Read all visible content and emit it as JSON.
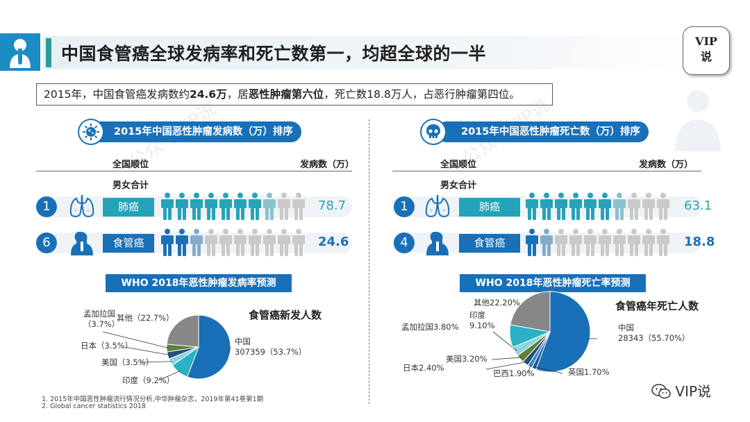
{
  "header": {
    "title": "中国食管癌全球发病率和死亡数第一，均超全球的一半",
    "logo_icon": "person-throat-icon",
    "vip_line1": "VIP",
    "vip_line2": "说"
  },
  "summary": {
    "p1": "2015年，中国食管癌发病数约",
    "b1": "24.6万",
    "p2": "，居",
    "b2": "恶性肿瘤第六位",
    "p3": "，死亡数18.8万人，占恶行肿瘤第四位。"
  },
  "left_panel": {
    "title": "2015年中国恶性肿瘤发病数（万）排序",
    "icon": "virus-icon",
    "col_rank": "全国顺位",
    "col_value": "发病数（万）",
    "subhead": "男女合计",
    "rows": [
      {
        "rank": "1",
        "organ_icon": "lungs-icon",
        "label": "肺癌",
        "value": "78.7",
        "filled_fraction": 0.787,
        "badge_color": "#25a3b8",
        "fig_color": "#25a3b8"
      },
      {
        "rank": "6",
        "organ_icon": "throat-icon",
        "label": "食管癌",
        "value": "24.6",
        "filled_fraction": 0.246,
        "badge_color": "#1a70b8",
        "fig_color": "#1a70b8"
      }
    ],
    "who_title": "WHO 2018年恶性肿瘤发病率预测",
    "pie_title": "食管癌新发人数"
  },
  "right_panel": {
    "title": "2015年中国恶性肿瘤死亡数（万）排序",
    "icon": "skull-icon",
    "col_rank": "全国顺位",
    "col_value": "发病数（万）",
    "subhead": "男女合计",
    "rows": [
      {
        "rank": "1",
        "organ_icon": "lungs-icon",
        "label": "肺癌",
        "value": "63.1",
        "filled_fraction": 0.631,
        "badge_color": "#25a3b8",
        "fig_color": "#25a3b8"
      },
      {
        "rank": "4",
        "organ_icon": "throat-icon",
        "label": "食管癌",
        "value": "18.8",
        "filled_fraction": 0.188,
        "badge_color": "#1a70b8",
        "fig_color": "#1a70b8"
      }
    ],
    "who_title": "WHO 2018年恶性肿瘤死亡率预测",
    "pie_title": "食管癌年死亡人数"
  },
  "chart_data": [
    {
      "type": "pie",
      "title": "食管癌新发人数",
      "slices": [
        {
          "name": "中国",
          "value": 53.7,
          "label": "中国\n307359（53.7%）",
          "color": "#1a70b8"
        },
        {
          "name": "印度",
          "value": 9.2,
          "label": "印度（9.2%）",
          "color": "#2bb0c4"
        },
        {
          "name": "美国",
          "value": 3.5,
          "label": "美国（3.5%）",
          "color": "#8fd3dd"
        },
        {
          "name": "日本",
          "value": 3.5,
          "label": "日本（3.5%）",
          "color": "#2c4f7c"
        },
        {
          "name": "孟加拉国",
          "value": 3.7,
          "label": "孟加拉国\n（3.7%）",
          "color": "#5d7f3a"
        },
        {
          "name": "其他",
          "value": 22.7,
          "label": "其他（22.7%）",
          "color": "#878787"
        }
      ]
    },
    {
      "type": "pie",
      "title": "食管癌年死亡人数",
      "slices": [
        {
          "name": "中国",
          "value": 55.7,
          "label": "中国\n28343（55.70%）",
          "color": "#1a70b8"
        },
        {
          "name": "英国",
          "value": 1.7,
          "label": "英国1.70%",
          "color": "#23539a"
        },
        {
          "name": "巴西",
          "value": 1.9,
          "label": "巴西1.90%",
          "color": "#3a8fc8"
        },
        {
          "name": "日本",
          "value": 2.4,
          "label": "日本2.40%",
          "color": "#2c4f7c"
        },
        {
          "name": "美国",
          "value": 3.2,
          "label": "美国3.20%",
          "color": "#5d7f3a"
        },
        {
          "name": "孟加拉国",
          "value": 3.8,
          "label": "孟加拉国3.80%",
          "color": "#8fd3dd"
        },
        {
          "name": "印度",
          "value": 9.1,
          "label": "印度\n9.10%",
          "color": "#2bb0c4"
        },
        {
          "name": "其他",
          "value": 22.2,
          "label": "其他22.20%",
          "color": "#878787"
        }
      ]
    }
  ],
  "footnotes": [
    "1. 2015年中国恶性肿瘤流行情况分析,中华肿瘤杂志，2019年第41卷第1期",
    "2. Global cancer statistics 2018"
  ],
  "watermark": "公众号VIP说",
  "wechat_label": "VIP说"
}
